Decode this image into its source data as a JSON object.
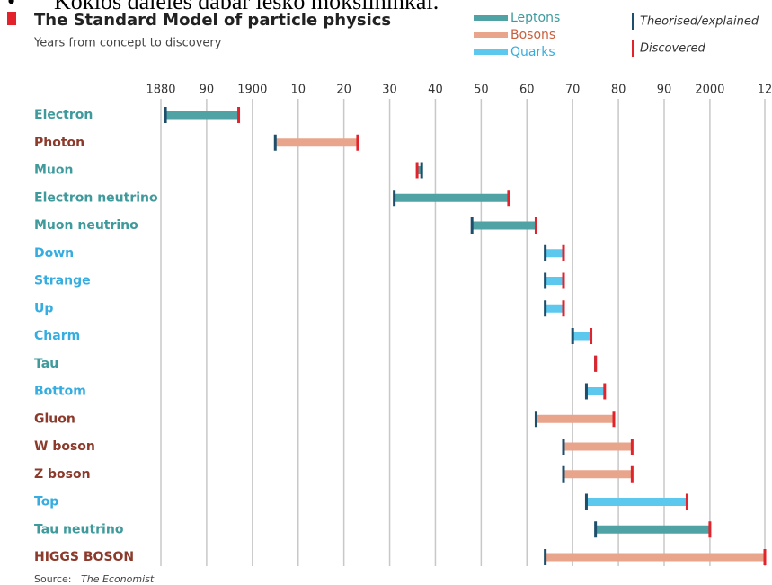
{
  "caption": "Kokios dalelės dabar ieško mokslininkai.",
  "chart_data": {
    "type": "range",
    "title": "The Standard Model of particle physics",
    "subtitle": "Years from concept to discovery",
    "source_label": "Source:",
    "source": "The Economist",
    "categories": [
      "Electron",
      "Photon",
      "Muon",
      "Electron neutrino",
      "Muon neutrino",
      "Down",
      "Strange",
      "Up",
      "Charm",
      "Tau",
      "Bottom",
      "Gluon",
      "W boson",
      "Z boson",
      "Top",
      "Tau neutrino",
      "HIGGS BOSON"
    ],
    "series": [
      {
        "name": "Leptons",
        "color": "#4fa3a5",
        "label_color": "#3f9a9c",
        "start": [
          1881,
          null,
          1937,
          1931,
          1948,
          null,
          null,
          null,
          null,
          1975,
          null,
          null,
          null,
          null,
          null,
          1975,
          null
        ],
        "end": [
          1897,
          null,
          1936,
          1956,
          1962,
          null,
          null,
          null,
          null,
          1975,
          null,
          null,
          null,
          null,
          null,
          2000,
          null
        ]
      },
      {
        "name": "Bosons",
        "color": "#e9a58b",
        "label_color": "#8b3a2b",
        "start": [
          null,
          1905,
          null,
          null,
          null,
          null,
          null,
          null,
          null,
          null,
          null,
          1962,
          1968,
          1968,
          null,
          null,
          1964
        ],
        "end": [
          null,
          1923,
          null,
          null,
          null,
          null,
          null,
          null,
          null,
          null,
          null,
          1979,
          1983,
          1983,
          null,
          null,
          2012
        ]
      },
      {
        "name": "Quarks",
        "color": "#5cc8ee",
        "label_color": "#35ade0",
        "start": [
          null,
          null,
          null,
          null,
          null,
          1964,
          1964,
          1964,
          1970,
          null,
          1973,
          null,
          null,
          null,
          1973,
          null,
          null
        ],
        "end": [
          null,
          null,
          null,
          null,
          null,
          1968,
          1968,
          1968,
          1974,
          null,
          1977,
          null,
          null,
          null,
          1995,
          null,
          null
        ]
      }
    ],
    "markers": [
      {
        "name": "Theorised/explained",
        "color": "#1d4e6b"
      },
      {
        "name": "Discovered",
        "color": "#e3232b"
      }
    ],
    "xlim": [
      1880,
      2012
    ],
    "xticks": [
      1880,
      {
        "value": 1890,
        "label": "90"
      },
      1900,
      {
        "value": 1910,
        "label": "10"
      },
      {
        "value": 1920,
        "label": "20"
      },
      {
        "value": 1930,
        "label": "30"
      },
      {
        "value": 1940,
        "label": "40"
      },
      {
        "value": 1950,
        "label": "50"
      },
      {
        "value": 1960,
        "label": "60"
      },
      {
        "value": 1970,
        "label": "70"
      },
      {
        "value": 1980,
        "label": "80"
      },
      {
        "value": 1990,
        "label": "90"
      },
      2000,
      {
        "value": 2012,
        "label": "12"
      }
    ],
    "grid": true
  }
}
